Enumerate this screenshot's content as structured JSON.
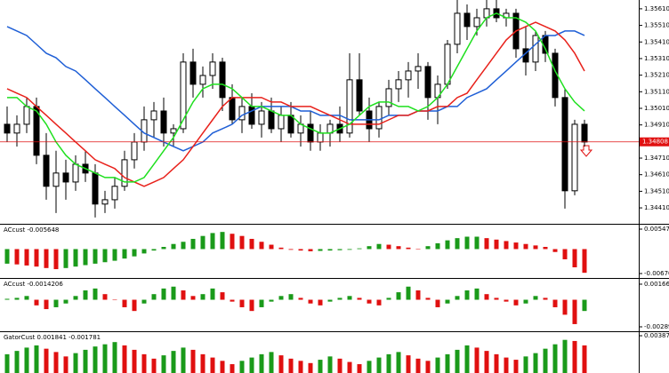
{
  "chart_data": [
    {
      "type": "candlestick",
      "open": [
        1.34914,
        1.34861,
        1.34914,
        1.35021,
        1.34727,
        1.3454,
        1.3462,
        1.34566,
        1.34673,
        1.3462,
        1.34433,
        1.34459,
        1.3454,
        1.347,
        1.34807,
        1.34941,
        1.34994,
        1.34861,
        1.34887,
        1.35289,
        1.35155,
        1.35208,
        1.35289,
        1.35075,
        1.34941,
        1.35021,
        1.34914,
        1.34994,
        1.34887,
        1.34968,
        1.34861,
        1.34914,
        1.34807,
        1.34861,
        1.34914,
        1.34861,
        1.35182,
        1.34994,
        1.34887,
        1.35021,
        1.35128,
        1.35182,
        1.35235,
        1.35262,
        1.35075,
        1.35155,
        1.35396,
        1.35583,
        1.35503,
        1.35556,
        1.3561,
        1.35556,
        1.35583,
        1.35369,
        1.35289,
        1.35449,
        1.35342,
        1.35075,
        1.34513,
        1.34914
      ],
      "high": [
        1.35021,
        1.34968,
        1.35075,
        1.35075,
        1.34861,
        1.34754,
        1.347,
        1.34727,
        1.34754,
        1.34673,
        1.34513,
        1.34593,
        1.34754,
        1.34861,
        1.35021,
        1.35048,
        1.35075,
        1.34914,
        1.35342,
        1.35369,
        1.35262,
        1.35342,
        1.35315,
        1.35155,
        1.35075,
        1.35101,
        1.35048,
        1.35075,
        1.35021,
        1.35048,
        1.34968,
        1.34994,
        1.34914,
        1.34941,
        1.35021,
        1.35342,
        1.35342,
        1.35075,
        1.35048,
        1.35182,
        1.35235,
        1.35289,
        1.35342,
        1.35289,
        1.35208,
        1.35422,
        1.35663,
        1.35636,
        1.3561,
        1.35663,
        1.35663,
        1.3561,
        1.3561,
        1.35503,
        1.35476,
        1.35476,
        1.35369,
        1.35128,
        1.34941,
        1.34941
      ],
      "low": [
        1.34807,
        1.3478,
        1.34861,
        1.34673,
        1.34459,
        1.34379,
        1.34459,
        1.34513,
        1.34566,
        1.34352,
        1.34379,
        1.34406,
        1.34513,
        1.34647,
        1.34754,
        1.34834,
        1.3478,
        1.3478,
        1.34861,
        1.35075,
        1.35075,
        1.35128,
        1.34994,
        1.34914,
        1.34861,
        1.34887,
        1.34834,
        1.34861,
        1.34807,
        1.34834,
        1.3478,
        1.34754,
        1.34754,
        1.3478,
        1.34807,
        1.34834,
        1.34968,
        1.34807,
        1.34834,
        1.34968,
        1.35048,
        1.35075,
        1.35128,
        1.34941,
        1.34914,
        1.35128,
        1.35342,
        1.35422,
        1.35449,
        1.35503,
        1.35529,
        1.35503,
        1.35315,
        1.35208,
        1.35235,
        1.35289,
        1.35021,
        1.34406,
        1.34486,
        1.3478
      ],
      "close": [
        1.34861,
        1.34914,
        1.35021,
        1.34727,
        1.3454,
        1.3462,
        1.34566,
        1.34673,
        1.3462,
        1.34433,
        1.34459,
        1.3454,
        1.347,
        1.34807,
        1.34941,
        1.34994,
        1.34861,
        1.34887,
        1.35289,
        1.35155,
        1.35208,
        1.35289,
        1.35075,
        1.34941,
        1.35021,
        1.34914,
        1.34994,
        1.34887,
        1.34968,
        1.34861,
        1.34914,
        1.34807,
        1.34861,
        1.34914,
        1.34861,
        1.35182,
        1.34994,
        1.34887,
        1.35021,
        1.35128,
        1.35182,
        1.35235,
        1.35262,
        1.35075,
        1.35155,
        1.35396,
        1.35583,
        1.35503,
        1.35556,
        1.3561,
        1.35556,
        1.35583,
        1.35369,
        1.35289,
        1.35449,
        1.35342,
        1.35075,
        1.34513,
        1.34914,
        1.34807
      ],
      "series": [
        {
          "color": "#1f5fd6",
          "values": [
            1.35503,
            1.35476,
            1.35449,
            1.35396,
            1.35342,
            1.35315,
            1.35262,
            1.35235,
            1.35182,
            1.35128,
            1.35075,
            1.35021,
            1.34968,
            1.34914,
            1.34861,
            1.34834,
            1.34807,
            1.3478,
            1.34754,
            1.3478,
            1.34807,
            1.34861,
            1.34887,
            1.34914,
            1.34968,
            1.34994,
            1.35021,
            1.35021,
            1.35021,
            1.35021,
            1.34994,
            1.34994,
            1.34968,
            1.34968,
            1.34968,
            1.34941,
            1.34941,
            1.34941,
            1.34941,
            1.34968,
            1.34968,
            1.34968,
            1.34994,
            1.34994,
            1.34994,
            1.35021,
            1.35021,
            1.35075,
            1.35101,
            1.35128,
            1.35182,
            1.35235,
            1.35289,
            1.35342,
            1.35396,
            1.35449,
            1.35449,
            1.35476,
            1.35476,
            1.35449
          ]
        },
        {
          "color": "#e8211b",
          "values": [
            1.35128,
            1.35101,
            1.35075,
            1.35021,
            1.34968,
            1.34914,
            1.34861,
            1.34807,
            1.34754,
            1.347,
            1.34673,
            1.34647,
            1.34593,
            1.34566,
            1.3454,
            1.34566,
            1.34593,
            1.34647,
            1.347,
            1.3478,
            1.34861,
            1.34941,
            1.35021,
            1.35075,
            1.35075,
            1.35075,
            1.35075,
            1.35048,
            1.35048,
            1.35021,
            1.35021,
            1.35021,
            1.34994,
            1.34968,
            1.34941,
            1.34914,
            1.34914,
            1.34914,
            1.34914,
            1.34941,
            1.34968,
            1.34968,
            1.34994,
            1.34994,
            1.35021,
            1.35021,
            1.35075,
            1.35101,
            1.35182,
            1.35262,
            1.35342,
            1.35422,
            1.35476,
            1.35503,
            1.35529,
            1.35503,
            1.35476,
            1.35422,
            1.35342,
            1.35235
          ]
        },
        {
          "color": "#1fe01f",
          "values": [
            1.35075,
            1.35075,
            1.35021,
            1.34994,
            1.34914,
            1.34807,
            1.34727,
            1.34673,
            1.34647,
            1.3462,
            1.34593,
            1.34593,
            1.34566,
            1.34566,
            1.34593,
            1.34673,
            1.34754,
            1.34834,
            1.34941,
            1.35048,
            1.35128,
            1.35155,
            1.35155,
            1.35128,
            1.35075,
            1.35021,
            1.35021,
            1.34994,
            1.34968,
            1.34968,
            1.34914,
            1.34887,
            1.34861,
            1.34861,
            1.34887,
            1.34914,
            1.34968,
            1.35021,
            1.35048,
            1.35048,
            1.35021,
            1.35021,
            1.34994,
            1.35021,
            1.35075,
            1.35155,
            1.35262,
            1.35369,
            1.35476,
            1.35556,
            1.35583,
            1.35556,
            1.35556,
            1.35529,
            1.35476,
            1.35369,
            1.35235,
            1.35128,
            1.35048,
            1.34994
          ]
        }
      ],
      "last_price": 1.34808,
      "ylim": [
        1.34314,
        1.35663
      ],
      "yticks": [
        {
          "value": 1.3561,
          "label": "1.35610"
        },
        {
          "value": 1.3551,
          "label": "1.35510"
        },
        {
          "value": 1.3541,
          "label": "1.35410"
        },
        {
          "value": 1.3531,
          "label": "1.35310"
        },
        {
          "value": 1.3521,
          "label": "1.35210"
        },
        {
          "value": 1.3511,
          "label": "1.35110"
        },
        {
          "value": 1.3501,
          "label": "1.35010"
        },
        {
          "value": 1.3491,
          "label": "1.34910"
        },
        {
          "value": 1.3471,
          "label": "1.34710"
        },
        {
          "value": 1.3461,
          "label": "1.34610"
        },
        {
          "value": 1.3451,
          "label": "1.34510"
        },
        {
          "value": 1.3441,
          "label": "1.34410"
        }
      ]
    },
    {
      "type": "bar",
      "title": "ACcust -0.005648",
      "values": [
        -0.004,
        -0.0042,
        -0.0045,
        -0.0048,
        -0.0052,
        -0.0055,
        -0.0052,
        -0.0048,
        -0.0044,
        -0.004,
        -0.0036,
        -0.0032,
        -0.0026,
        -0.002,
        -0.0012,
        -0.0004,
        0.0006,
        0.0014,
        0.002,
        0.0028,
        0.0036,
        0.0044,
        0.0047,
        0.0042,
        0.0036,
        0.0028,
        0.002,
        0.0012,
        0.0004,
        -0.0002,
        -0.0004,
        -0.0006,
        -0.0005,
        -0.0004,
        -0.0003,
        -0.0002,
        0.0002,
        0.0008,
        0.0014,
        0.0012,
        0.0008,
        0.0004,
        0,
        0.0008,
        0.0016,
        0.0024,
        0.003,
        0.0034,
        0.0034,
        0.003,
        0.0026,
        0.0022,
        0.0018,
        0.0014,
        0.001,
        0.0006,
        -0.0008,
        -0.0028,
        -0.005,
        -0.0065
      ],
      "up_color": "#1a9a1a",
      "down_color": "#e01010",
      "ylim": [
        -0.00768,
        0.00669
      ],
      "yticks": [
        {
          "value": 0.00547,
          "label": "0.005470"
        },
        -0.006706
      ]
    },
    {
      "type": "bar",
      "title": "ACcust -0.0014206",
      "values": [
        0.0001,
        0.0002,
        0.0004,
        -0.0006,
        -0.001,
        -0.0008,
        -0.0004,
        0.0004,
        0.001,
        0.0012,
        0.0006,
        0,
        -0.0008,
        -0.0012,
        -0.0004,
        0.0006,
        0.0012,
        0.0014,
        0.001,
        0.0004,
        0.0006,
        0.0012,
        0.0008,
        -0.0002,
        -0.0008,
        -0.0012,
        -0.0008,
        -0.0002,
        0.0004,
        0.0006,
        0.0002,
        -0.0004,
        -0.0006,
        -0.0002,
        0.0002,
        0.0004,
        0.0002,
        -0.0004,
        -0.0006,
        0.0002,
        0.0008,
        0.0014,
        0.001,
        0.0002,
        -0.0008,
        -0.0004,
        0.0004,
        0.001,
        0.0012,
        0.0006,
        0.0002,
        -0.0002,
        -0.0006,
        -0.0004,
        0.0004,
        0.0002,
        -0.0008,
        -0.0016,
        -0.0026,
        -0.0012
      ],
      "up_color": "#1a9a1a",
      "down_color": "#e01010",
      "ylim": [
        -0.00327,
        0.00223
      ],
      "yticks": [
        0.0016632,
        -0.0028904
      ]
    },
    {
      "type": "bar",
      "title": "GatorCust 0.001841 -0.001781",
      "values": [
        0.0022,
        0.0025,
        0.0028,
        0.003,
        0.0027,
        0.0024,
        0.002,
        0.0023,
        0.0026,
        0.0029,
        0.0031,
        0.0033,
        0.003,
        0.0026,
        0.0022,
        0.0018,
        0.0021,
        0.0025,
        0.0028,
        0.0026,
        0.0022,
        0.0019,
        0.0016,
        0.0013,
        0.0016,
        0.0019,
        0.0022,
        0.0024,
        0.0021,
        0.0018,
        0.0016,
        0.0014,
        0.0017,
        0.002,
        0.0018,
        0.0015,
        0.0013,
        0.0016,
        0.0019,
        0.0022,
        0.0024,
        0.0021,
        0.0018,
        0.0016,
        0.0019,
        0.0022,
        0.0026,
        0.003,
        0.0028,
        0.0025,
        0.0022,
        0.0019,
        0.0017,
        0.002,
        0.0023,
        0.0027,
        0.0031,
        0.0035,
        0.0034,
        0.003
      ],
      "up_color": "#1a9a1a",
      "down_color": "#e01010",
      "ylim": [
        0.0005,
        0.0042
      ],
      "yticks": [
        0.003875
      ]
    }
  ]
}
